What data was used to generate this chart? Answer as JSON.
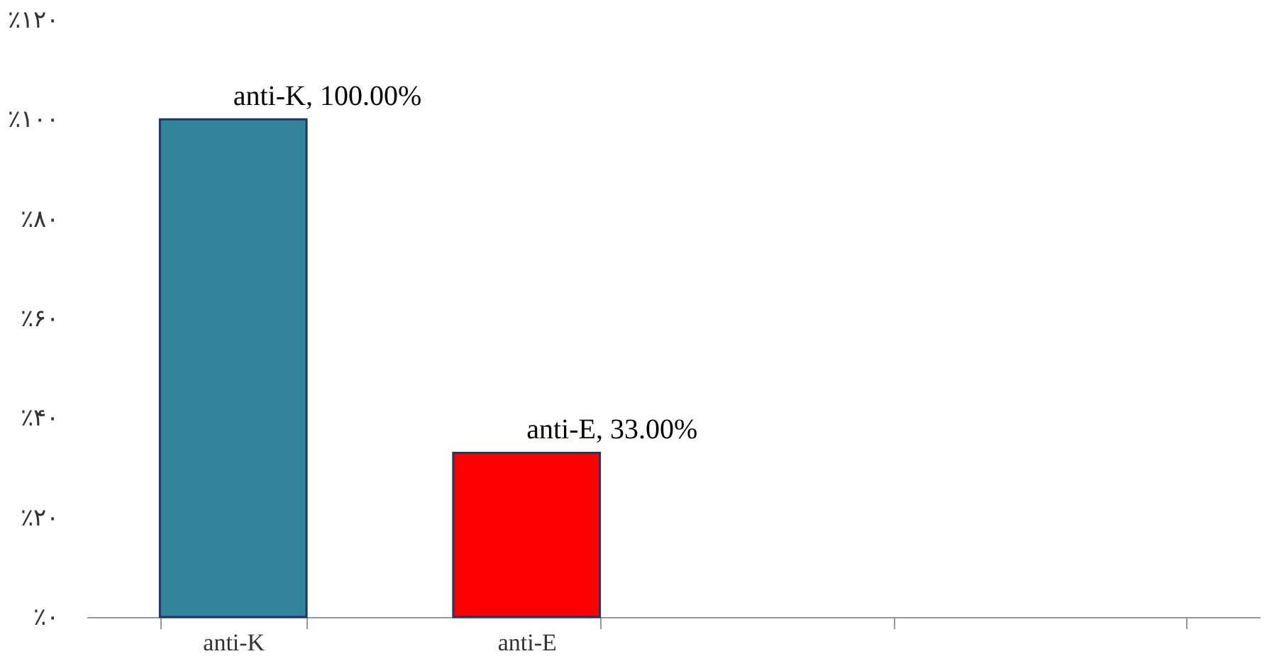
{
  "chart_data": {
    "type": "bar",
    "categories": [
      "anti-K",
      "anti-E",
      null,
      null
    ],
    "values": [
      100,
      33,
      null,
      null
    ],
    "colors": [
      "#31849b",
      "#ff0000",
      "#ffffff",
      "#ffffff"
    ],
    "value_labels": [
      "anti-K, 100.00%",
      "anti-E, 33.00%",
      null,
      null
    ],
    "ylim": [
      0,
      120
    ],
    "yticks": [
      {
        "value": 0,
        "label": "٪۰"
      },
      {
        "value": 20,
        "label": "٪۲۰"
      },
      {
        "value": 40,
        "label": "٪۴۰"
      },
      {
        "value": 60,
        "label": "٪۶۰"
      },
      {
        "value": 80,
        "label": "٪۸۰"
      },
      {
        "value": 100,
        "label": "٪۱۰۰"
      },
      {
        "value": 120,
        "label": "٪۱۲۰"
      }
    ],
    "grid": false
  }
}
